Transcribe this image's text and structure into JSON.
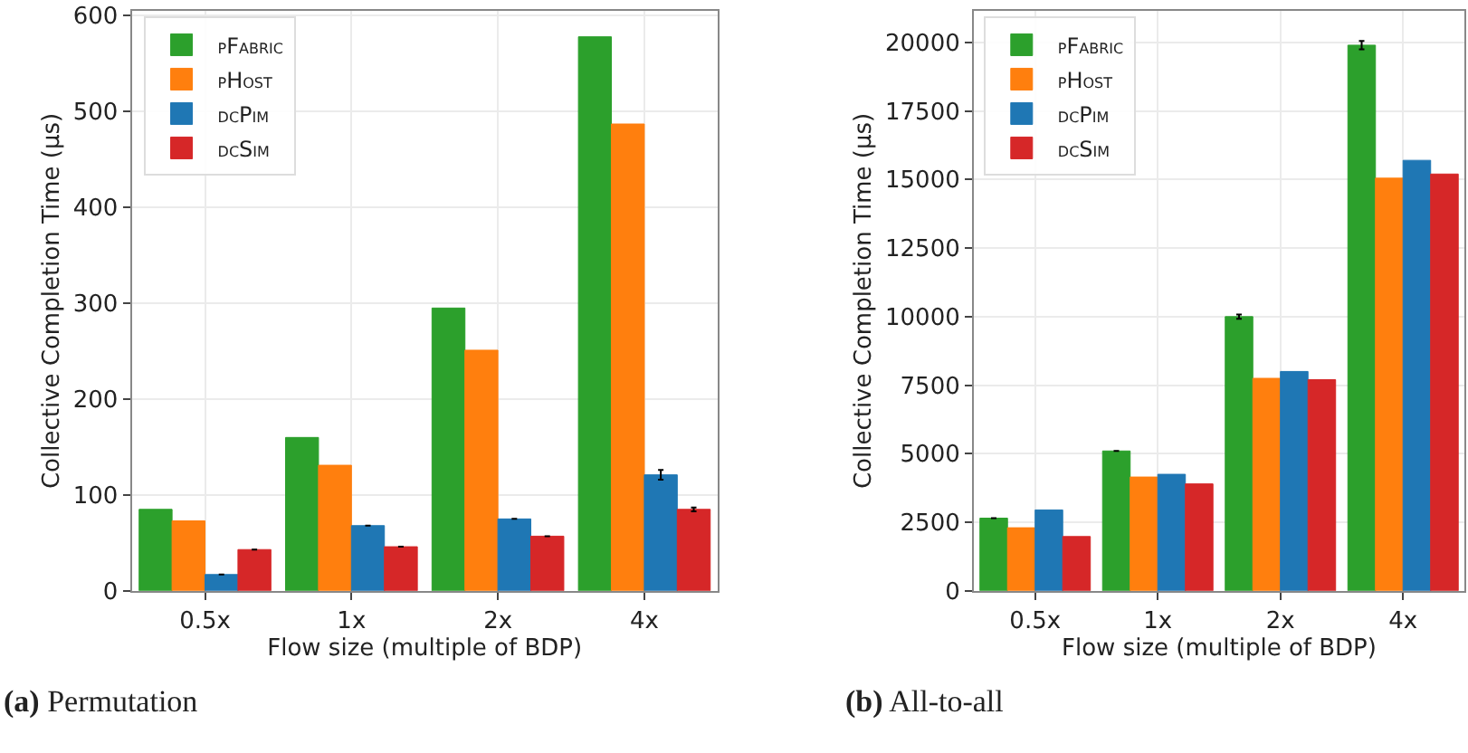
{
  "chart_data": [
    {
      "type": "bar",
      "categories": [
        "0.5x",
        "1x",
        "2x",
        "4x"
      ],
      "xlabel": "Flow size (multiple of BDP)",
      "ylabel": "Collective Completion Time (µs)",
      "ylim": [
        0,
        605
      ],
      "yticks": [
        0,
        100,
        200,
        300,
        400,
        500,
        600
      ],
      "grid": true,
      "legend": "top left",
      "annotations": [
        "(a) Permutation"
      ],
      "series": [
        {
          "name": "pFabric",
          "color": "#2ca02c",
          "values": [
            85,
            160,
            295,
            578
          ]
        },
        {
          "name": "pHost",
          "color": "#ff7f0e",
          "values": [
            73,
            131,
            251,
            487
          ]
        },
        {
          "name": "dcPim",
          "color": "#1f77b4",
          "values": [
            17,
            68,
            75,
            121
          ],
          "errors": [
            null,
            null,
            null,
            5
          ]
        },
        {
          "name": "dcSim",
          "color": "#d62728",
          "values": [
            43,
            46,
            57,
            85
          ],
          "errors": [
            null,
            null,
            null,
            2
          ]
        }
      ]
    },
    {
      "type": "bar",
      "categories": [
        "0.5x",
        "1x",
        "2x",
        "4x"
      ],
      "xlabel": "Flow size (multiple of BDP)",
      "ylabel": "Collective Completion Time (µs)",
      "ylim": [
        0,
        21150
      ],
      "yticks": [
        0,
        2500,
        5000,
        7500,
        10000,
        12500,
        15000,
        17500,
        20000
      ],
      "grid": true,
      "legend": "top left",
      "annotations": [
        "(b) All-to-all"
      ],
      "series": [
        {
          "name": "pFabric",
          "color": "#2ca02c",
          "values": [
            2650,
            5100,
            10000,
            19900
          ],
          "errors": [
            null,
            null,
            80,
            150
          ]
        },
        {
          "name": "pHost",
          "color": "#ff7f0e",
          "values": [
            2300,
            4150,
            7750,
            15050
          ]
        },
        {
          "name": "dcPim",
          "color": "#1f77b4",
          "values": [
            2950,
            4250,
            8000,
            15700
          ]
        },
        {
          "name": "dcSim",
          "color": "#d62728",
          "values": [
            1980,
            3900,
            7700,
            15200
          ]
        }
      ]
    }
  ]
}
